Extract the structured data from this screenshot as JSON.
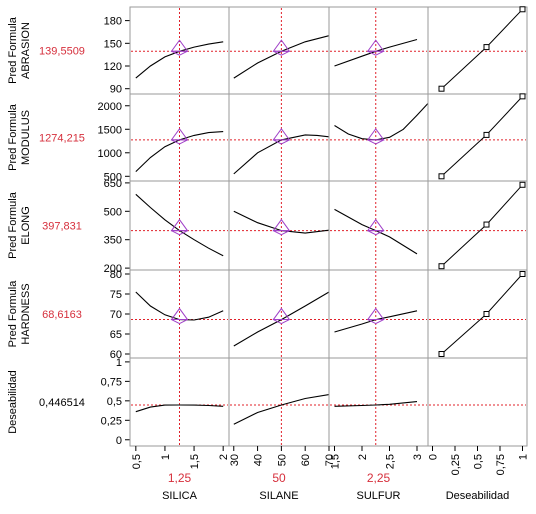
{
  "chart_data": {
    "type": "line",
    "factors": [
      {
        "name": "SILICA",
        "current": "1,25",
        "current_value": 1.25,
        "range": [
          0.4,
          2.1
        ],
        "ticks": [
          {
            "v": 0.5,
            "l": "0,5"
          },
          {
            "v": 1,
            "l": "1"
          },
          {
            "v": 1.5,
            "l": "1,5"
          },
          {
            "v": 2,
            "l": "2"
          }
        ]
      },
      {
        "name": "SILANE",
        "current": "50",
        "current_value": 50,
        "range": [
          28,
          70
        ],
        "ticks": [
          {
            "v": 30,
            "l": "30"
          },
          {
            "v": 40,
            "l": "40"
          },
          {
            "v": 50,
            "l": "50"
          },
          {
            "v": 60,
            "l": "60"
          },
          {
            "v": 70,
            "l": "70"
          }
        ]
      },
      {
        "name": "SULFUR",
        "current": "2,25",
        "current_value": 2.25,
        "range": [
          1.4,
          3.2
        ],
        "ticks": [
          {
            "v": 1.5,
            "l": "1,5"
          },
          {
            "v": 2,
            "l": "2"
          },
          {
            "v": 2.5,
            "l": "2,5"
          },
          {
            "v": 3,
            "l": "3"
          }
        ]
      },
      {
        "name": "Deseabilidad",
        "current": "",
        "current_value": null,
        "range": [
          -0.05,
          1.05
        ],
        "ticks": [
          {
            "v": 0,
            "l": "0"
          },
          {
            "v": 0.25,
            "l": "0,25"
          },
          {
            "v": 0.5,
            "l": "0,5"
          },
          {
            "v": 0.75,
            "l": "0,75"
          },
          {
            "v": 1,
            "l": "1"
          }
        ]
      }
    ],
    "responses": [
      {
        "label1": "Pred Formula",
        "label2": "ABRASION",
        "current": "139,5509",
        "current_value": 139.5509,
        "range": [
          83,
          198
        ],
        "ticks": [
          {
            "v": 90,
            "l": "90"
          },
          {
            "v": 120,
            "l": "120"
          },
          {
            "v": 150,
            "l": "150"
          },
          {
            "v": 180,
            "l": "180"
          }
        ],
        "curves": [
          [
            [
              0.5,
              104
            ],
            [
              0.75,
              120
            ],
            [
              1,
              132
            ],
            [
              1.25,
              139.5
            ],
            [
              1.5,
              145
            ],
            [
              1.75,
              149
            ],
            [
              2,
              152
            ]
          ],
          [
            [
              30,
              104
            ],
            [
              40,
              124
            ],
            [
              50,
              139.5
            ],
            [
              60,
              152
            ],
            [
              70,
              160
            ]
          ],
          [
            [
              1.5,
              120
            ],
            [
              2,
              133
            ],
            [
              2.25,
              139.5
            ],
            [
              2.5,
              145
            ],
            [
              3,
              155
            ]
          ]
        ],
        "desirability": [
          [
            0.1,
            90
          ],
          [
            0.6,
            145
          ],
          [
            1,
            195
          ]
        ],
        "marker_in_range": [
          true,
          true,
          true
        ]
      },
      {
        "label1": "Pred Formula",
        "label2": "MODULUS",
        "current": "1274,215",
        "current_value": 1274.215,
        "range": [
          400,
          2250
        ],
        "ticks": [
          {
            "v": 500,
            "l": "500"
          },
          {
            "v": 1000,
            "l": "1000"
          },
          {
            "v": 1500,
            "l": "1500"
          },
          {
            "v": 2000,
            "l": "2000"
          }
        ],
        "curves": [
          [
            [
              0.5,
              600
            ],
            [
              0.75,
              900
            ],
            [
              1,
              1130
            ],
            [
              1.25,
              1274
            ],
            [
              1.5,
              1370
            ],
            [
              1.75,
              1430
            ],
            [
              2,
              1450
            ]
          ],
          [
            [
              30,
              550
            ],
            [
              40,
              1000
            ],
            [
              50,
              1274
            ],
            [
              60,
              1380
            ],
            [
              65,
              1370
            ],
            [
              70,
              1340
            ]
          ],
          [
            [
              1.5,
              1580
            ],
            [
              1.75,
              1400
            ],
            [
              2,
              1300
            ],
            [
              2.25,
              1274
            ],
            [
              2.5,
              1330
            ],
            [
              2.75,
              1500
            ],
            [
              3,
              1800
            ],
            [
              3.2,
              2050
            ]
          ]
        ],
        "desirability": [
          [
            0.1,
            500
          ],
          [
            0.6,
            1380
          ],
          [
            1,
            2200
          ]
        ],
        "marker_in_range": [
          true,
          true,
          true
        ]
      },
      {
        "label1": "Pred Formula",
        "label2": "ELONG",
        "current": "397,831",
        "current_value": 397.831,
        "range": [
          190,
          660
        ],
        "ticks": [
          {
            "v": 200,
            "l": "200"
          },
          {
            "v": 350,
            "l": "350"
          },
          {
            "v": 500,
            "l": "500"
          },
          {
            "v": 650,
            "l": "650"
          }
        ],
        "curves": [
          [
            [
              0.5,
              590
            ],
            [
              0.75,
              520
            ],
            [
              1,
              455
            ],
            [
              1.25,
              398
            ],
            [
              1.5,
              350
            ],
            [
              1.75,
              305
            ],
            [
              2,
              265
            ]
          ],
          [
            [
              30,
              500
            ],
            [
              40,
              440
            ],
            [
              50,
              398
            ],
            [
              60,
              385
            ],
            [
              70,
              400
            ]
          ],
          [
            [
              1.5,
              510
            ],
            [
              2,
              430
            ],
            [
              2.25,
              398
            ],
            [
              2.5,
              365
            ],
            [
              3,
              275
            ]
          ]
        ],
        "desirability": [
          [
            0.1,
            210
          ],
          [
            0.6,
            430
          ],
          [
            1,
            640
          ]
        ],
        "marker_in_range": [
          true,
          true,
          true
        ]
      },
      {
        "label1": "Pred Formula",
        "label2": "HARDNESS",
        "current": "68,6163",
        "current_value": 68.6163,
        "range": [
          59,
          81
        ],
        "ticks": [
          {
            "v": 60,
            "l": "60"
          },
          {
            "v": 65,
            "l": "65"
          },
          {
            "v": 70,
            "l": "70"
          },
          {
            "v": 75,
            "l": "75"
          },
          {
            "v": 80,
            "l": "80"
          }
        ],
        "curves": [
          [
            [
              0.5,
              75.5
            ],
            [
              0.75,
              72
            ],
            [
              1,
              69.8
            ],
            [
              1.25,
              68.6
            ],
            [
              1.5,
              68.5
            ],
            [
              1.75,
              69.2
            ],
            [
              2,
              70.8
            ]
          ],
          [
            [
              30,
              62
            ],
            [
              40,
              65.5
            ],
            [
              50,
              68.6
            ],
            [
              60,
              72
            ],
            [
              70,
              75.5
            ]
          ],
          [
            [
              1.5,
              65.5
            ],
            [
              2,
              67.5
            ],
            [
              2.25,
              68.6
            ],
            [
              2.5,
              69.3
            ],
            [
              3,
              70.8
            ]
          ]
        ],
        "desirability": [
          [
            0.1,
            60
          ],
          [
            0.6,
            70
          ],
          [
            1,
            80
          ]
        ],
        "marker_in_range": [
          true,
          true,
          true
        ]
      },
      {
        "label1": "Deseabilidad",
        "label2": "",
        "current": "0,446514",
        "current_value": 0.446514,
        "range": [
          -0.08,
          1.05
        ],
        "ticks": [
          {
            "v": 0,
            "l": "0"
          },
          {
            "v": 0.25,
            "l": "0,25"
          },
          {
            "v": 0.5,
            "l": "0,5"
          },
          {
            "v": 0.75,
            "l": "0,75"
          },
          {
            "v": 1,
            "l": "1"
          }
        ],
        "curves": [
          [
            [
              0.5,
              0.36
            ],
            [
              0.75,
              0.42
            ],
            [
              1,
              0.445
            ],
            [
              1.25,
              0.4465
            ],
            [
              1.5,
              0.445
            ],
            [
              1.75,
              0.44
            ],
            [
              2,
              0.43
            ]
          ],
          [
            [
              30,
              0.2
            ],
            [
              40,
              0.35
            ],
            [
              50,
              0.4465
            ],
            [
              60,
              0.53
            ],
            [
              70,
              0.58
            ]
          ],
          [
            [
              1.5,
              0.43
            ],
            [
              2,
              0.44
            ],
            [
              2.25,
              0.4465
            ],
            [
              2.5,
              0.455
            ],
            [
              3,
              0.49
            ]
          ]
        ],
        "desirability": null,
        "marker_in_range": [
          false,
          false,
          false
        ]
      }
    ],
    "colors": {
      "crosshair": "#e0202a",
      "marker": "#a040c8",
      "curve": "#000000",
      "value_text": "#d62f3c",
      "frame": "#9a9a9a"
    }
  }
}
